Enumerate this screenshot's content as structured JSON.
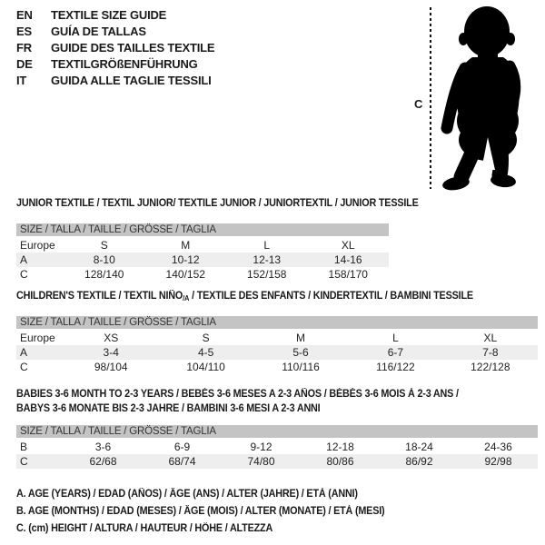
{
  "colors": {
    "background": "#ffffff",
    "text": "#1a1a1a",
    "table_header_bar_bg": "#c4c4c4",
    "row_stripe_bg": "#eeeeee",
    "silhouette": "#000000"
  },
  "language_header": {
    "items": [
      {
        "code": "EN",
        "title": "TEXTILE SIZE GUIDE"
      },
      {
        "code": "ES",
        "title": "GUÍA DE TALLAS"
      },
      {
        "code": "FR",
        "title": "GUIDE DES TAILLES TEXTILE"
      },
      {
        "code": "DE",
        "title": "TEXTILGRÖßENFÜHRUNG"
      },
      {
        "code": "IT",
        "title": "GUIDA ALLE TAGLIE TESSILI"
      }
    ]
  },
  "figure": {
    "measure_label": "C",
    "image": "toddler-silhouette"
  },
  "sections": {
    "junior": {
      "title": "JUNIOR TEXTILE / TEXTIL JUNIOR/ TEXTILE JUNIOR / JUNIORTEXTIL / JUNIOR TESSILE",
      "size_header": "SIZE / TALLA / TAILLE / GRÖSSE / TAGLIA",
      "rows": [
        {
          "label": "Europe",
          "values": [
            "S",
            "M",
            "L",
            "XL"
          ],
          "shade": false
        },
        {
          "label": "A",
          "values": [
            "8-10",
            "10-12",
            "12-13",
            "14-16"
          ],
          "shade": true
        },
        {
          "label": "C",
          "values": [
            "128/140",
            "140/152",
            "152/158",
            "158/170"
          ],
          "shade": false
        }
      ]
    },
    "children": {
      "title_pre": "CHILDREN'S TEXTILE / TEXTIL NIÑO",
      "title_sub": "/A",
      "title_post": " / TEXTILE DES ENFANTS / KINDERTEXTIL / BAMBINI TESSILE",
      "size_header": "SIZE / TALLA / TAILLE / GRÖSSE / TAGLIA",
      "rows": [
        {
          "label": "Europe",
          "values": [
            "XS",
            "S",
            "M",
            "L",
            "XL"
          ],
          "shade": false
        },
        {
          "label": "A",
          "values": [
            "3-4",
            "4-5",
            "5-6",
            "6-7",
            "7-8"
          ],
          "shade": true
        },
        {
          "label": "C",
          "values": [
            "98/104",
            "104/110",
            "110/116",
            "116/122",
            "122/128"
          ],
          "shade": false
        }
      ]
    },
    "babies": {
      "title_line1": "BABIES 3-6 MONTH TO 2-3 YEARS / BEBÉS 3-6 MESES A 2-3 AÑOS / BÉBÉS 3-6 MOIS À 2-3 ANS /",
      "title_line2": "BABYS 3-6 MONATE BIS 2-3 JAHRE / BAMBINI 3-6 MESI A 2-3 ANNI",
      "size_header": "SIZE / TALLA / TAILLE / GRÖSSE / TAGLIA",
      "rows": [
        {
          "label": "B",
          "values": [
            "3-6",
            "6-9",
            "9-12",
            "12-18",
            "18-24",
            "24-36"
          ],
          "shade": false
        },
        {
          "label": "C",
          "values": [
            "62/68",
            "68/74",
            "74/80",
            "80/86",
            "86/92",
            "92/98"
          ],
          "shade": true
        }
      ]
    }
  },
  "footnotes": [
    "A. AGE (YEARS) / EDAD (AÑOS) / ÂGE (ANS) / ALTER (JAHRE) / ETÀ (ANNI)",
    "B. AGE (MONTHS) / EDAD (MESES) / ÂGE (MOIS) / ALTER (MONATE) / ETÀ (MESI)",
    "C. (cm) HEIGHT / ALTURA / HAUTEUR / HÖHE / ALTEZZA"
  ]
}
